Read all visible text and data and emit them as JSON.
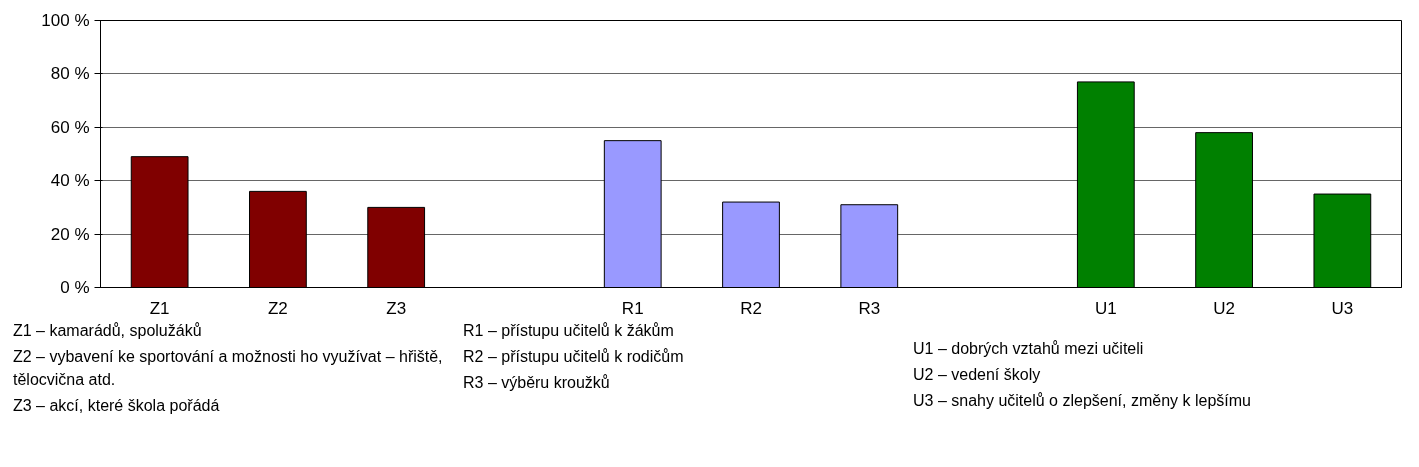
{
  "chart_data": {
    "type": "bar",
    "categories": [
      "Z1",
      "Z2",
      "Z3",
      null,
      "R1",
      "R2",
      "R3",
      null,
      "U1",
      "U2",
      "U3"
    ],
    "values": [
      49,
      36,
      30,
      null,
      55,
      32,
      31,
      null,
      77,
      58,
      35
    ],
    "colors": [
      "#800000",
      "#800000",
      "#800000",
      "#ffffff",
      "#9999ff",
      "#9999ff",
      "#9999ff",
      "#ffffff",
      "#008000",
      "#008000",
      "#008000"
    ],
    "ylim": [
      0,
      100
    ],
    "yticks": [
      {
        "value": 0,
        "label": "0 %"
      },
      {
        "value": 20,
        "label": "20 %"
      },
      {
        "value": 40,
        "label": "40 %"
      },
      {
        "value": 60,
        "label": "60 %"
      },
      {
        "value": 80,
        "label": "80 %"
      },
      {
        "value": 100,
        "label": "100 %"
      }
    ],
    "grid": "y",
    "annotations": [
      "Z1 – kamarádů, spolužáků",
      "Z2 – vybavení ke sportování a možnosti ho využívat – hřiště, tělocvična atd.",
      "Z3 – akcí, které škola pořádá",
      "R1 – přístupu učitelů k žákům",
      "R2 – přístupu učitelů k rodičům",
      "R3 – výběru kroužků",
      "U1 – dobrých vztahů mezi učiteli",
      "U2 – vedení školy",
      "U3 – snahy učitelů o zlepšení, změny k lepšímu"
    ]
  }
}
